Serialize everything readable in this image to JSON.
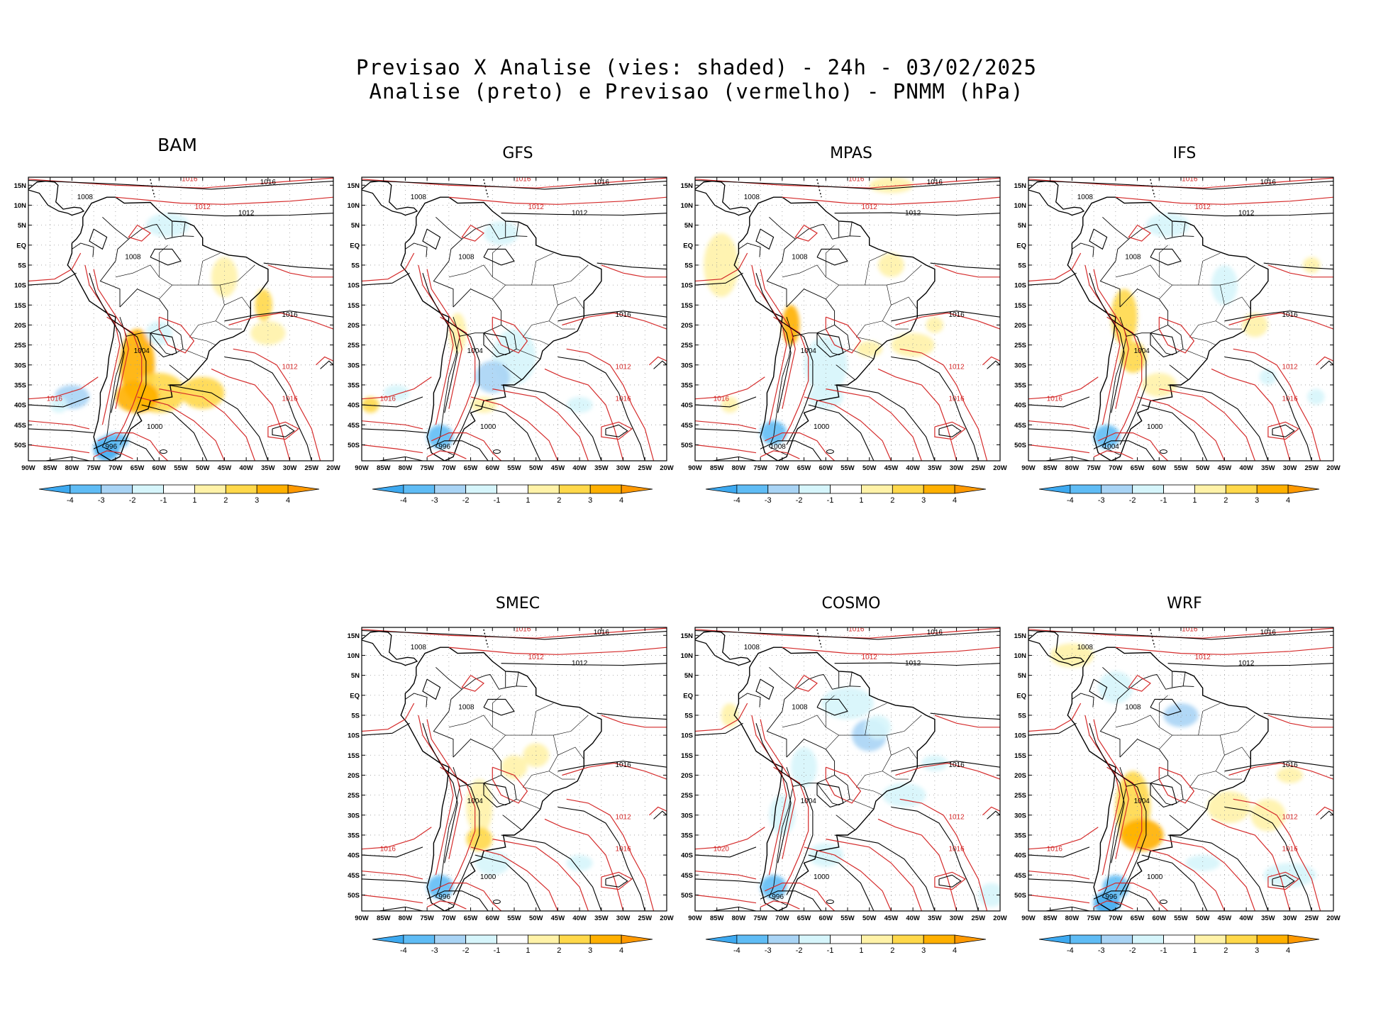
{
  "header": {
    "line1": "Previsao X Analise (vies: shaded) - 24h - 03/02/2025",
    "line2": "Analise (preto) e Previsao (vermelho) - PNMM (hPa)"
  },
  "axes": {
    "lat_labels": [
      "15N",
      "10N",
      "5N",
      "EQ",
      "5S",
      "10S",
      "15S",
      "20S",
      "25S",
      "30S",
      "35S",
      "40S",
      "45S",
      "50S"
    ],
    "lon_labels": [
      "90W",
      "85W",
      "80W",
      "75W",
      "70W",
      "65W",
      "60W",
      "55W",
      "50W",
      "45W",
      "40W",
      "35W",
      "30W",
      "25W",
      "20W"
    ]
  },
  "colorbar": {
    "labels": [
      "-4",
      "-3",
      "-2",
      "-1",
      "1",
      "2",
      "3",
      "4"
    ],
    "colors": [
      "#3da9f0",
      "#5fbcf5",
      "#a9d4f5",
      "#d6f5fb",
      "#ffffff",
      "#fff2a8",
      "#ffd84a",
      "#ffb000",
      "#ff9900"
    ]
  },
  "contours": {
    "analysis_color": "#000000",
    "forecast_color": "#d42a2a",
    "levels": [
      "996",
      "1000",
      "1004",
      "1008",
      "1012",
      "1016",
      "1020"
    ]
  },
  "panels": [
    {
      "name": "BAM",
      "labels": [
        "1016",
        "1016",
        "1012",
        "1012",
        "1008",
        "1008",
        "1016",
        "1016",
        "1012",
        "1004",
        "1000",
        "996",
        "1016"
      ]
    },
    {
      "name": "GFS",
      "labels": [
        "1016",
        "1016",
        "1012",
        "1012",
        "1008",
        "1008",
        "1016",
        "1016",
        "1012",
        "1004",
        "1000",
        "996",
        "1016"
      ]
    },
    {
      "name": "MPAS",
      "labels": [
        "1016",
        "1016",
        "1012",
        "1012",
        "1008",
        "1008",
        "1016",
        "1016",
        "1012",
        "1004",
        "1000",
        "1008",
        "1016"
      ]
    },
    {
      "name": "IFS",
      "labels": [
        "1016",
        "1016",
        "1012",
        "1012",
        "1008",
        "1008",
        "1016",
        "1016",
        "1012",
        "1004",
        "1000",
        "1004",
        "1016"
      ]
    },
    {
      "name": "SMEC",
      "labels": [
        "1016",
        "1016",
        "1012",
        "1012",
        "1008",
        "1008",
        "1016",
        "1016",
        "1012",
        "1004",
        "1000",
        "996",
        "1016"
      ]
    },
    {
      "name": "COSMO",
      "labels": [
        "1016",
        "1016",
        "1012",
        "1012",
        "1008",
        "1008",
        "1016",
        "1016",
        "1012",
        "1004",
        "1000",
        "996",
        "1020"
      ]
    },
    {
      "name": "WRF",
      "labels": [
        "1016",
        "1016",
        "1012",
        "1012",
        "1008",
        "1008",
        "1016",
        "1016",
        "1012",
        "1004",
        "1000",
        "996",
        "1016"
      ]
    }
  ]
}
